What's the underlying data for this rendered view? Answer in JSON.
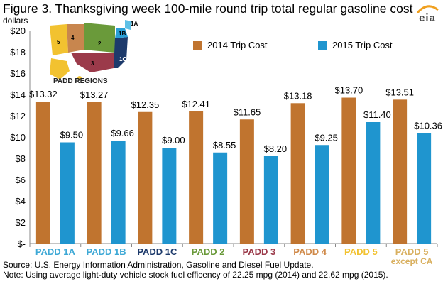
{
  "title": "Figure 3. Thanksgiving week 100-mile round trip total regular gasoline cost",
  "unit_label": "dollars",
  "logo_text": "eia",
  "map": {
    "label": "PADD REGIONS",
    "regions": [
      "1A",
      "1B",
      "1C",
      "2",
      "3",
      "4",
      "5"
    ]
  },
  "footer": {
    "source": "Source: U.S. Energy Information  Administration, Gasoline and Diesel Fuel Update.",
    "note": "Note: Using average  light-duty vehicle   stock fuel efficency of 22.25 mpg (2014) and 22.62 mpg (2015)."
  },
  "chart_data": {
    "type": "bar",
    "categories": [
      "PADD 1A",
      "PADD 1B",
      "PADD 1C",
      "PADD 2",
      "PADD 3",
      "PADD 4",
      "PADD 5",
      "PADD 5\nexcept CA"
    ],
    "category_colors": [
      "#3fa9d6",
      "#3fa9d6",
      "#1d3a6b",
      "#6a9a3a",
      "#9b3a4a",
      "#d08a4a",
      "#f2c230",
      "#d9b060"
    ],
    "series": [
      {
        "name": "2014 Trip Cost",
        "color": "#c0742f",
        "values": [
          13.32,
          13.27,
          12.35,
          12.41,
          11.65,
          13.18,
          13.7,
          13.51
        ],
        "labels": [
          "$13.32",
          "$13.27",
          "$12.35",
          "$12.41",
          "$11.65",
          "$13.18",
          "$13.70",
          "$13.51"
        ]
      },
      {
        "name": "2015 Trip Cost",
        "color": "#1f95cf",
        "values": [
          9.5,
          9.66,
          9.0,
          8.55,
          8.2,
          9.25,
          11.4,
          10.36
        ],
        "labels": [
          "$9.50",
          "$9.66",
          "$9.00",
          "$8.55",
          "$8.20",
          "$9.25",
          "$11.40",
          "$10.36"
        ]
      }
    ],
    "ylim": [
      0,
      20
    ],
    "yticks": [
      "$-",
      "$2",
      "$4",
      "$6",
      "$8",
      "$10",
      "$12",
      "$14",
      "$16",
      "$18",
      "$20"
    ],
    "legend_position": "top-right",
    "grid": false
  }
}
